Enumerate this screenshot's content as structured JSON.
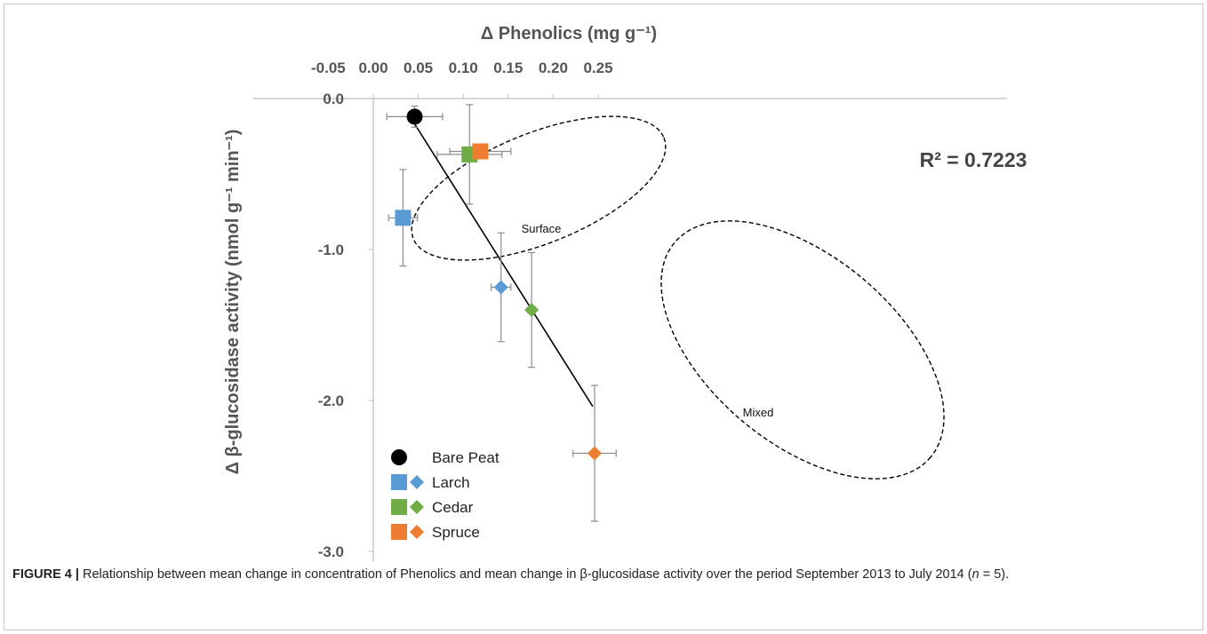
{
  "chart_data": {
    "type": "scatter",
    "xlabel": "Δ Phenolics (mg g⁻¹)",
    "ylabel": "Δ β-glucosidase activity (nmol g⁻¹ min⁻¹)",
    "x_ticks": [
      "-0.05",
      "0.00",
      "0.05",
      "0.10",
      "0.15",
      "0.20",
      "0.25"
    ],
    "y_ticks": [
      "0.0",
      "-1.0",
      "-2.0",
      "-3.0"
    ],
    "xlim": [
      -0.05,
      0.25
    ],
    "ylim": [
      -3.0,
      0.0
    ],
    "x_axis_position": "top",
    "grid": false,
    "legend_position": "bottom-left",
    "legend": [
      {
        "label": "Bare Peat",
        "markers": [
          "circle"
        ],
        "colors": [
          "#000000"
        ]
      },
      {
        "label": "Larch",
        "markers": [
          "square",
          "diamond"
        ],
        "colors": [
          "#5b9bd5",
          "#5b9bd5"
        ]
      },
      {
        "label": "Cedar",
        "markers": [
          "square",
          "diamond"
        ],
        "colors": [
          "#70ad47",
          "#70ad47"
        ]
      },
      {
        "label": "Spruce",
        "markers": [
          "square",
          "diamond"
        ],
        "colors": [
          "#ed7d31",
          "#ed7d31"
        ]
      }
    ],
    "series": [
      {
        "name": "Bare Peat",
        "marker": "circle",
        "color": "#000000",
        "points": [
          {
            "x": 0.046,
            "y": -0.12,
            "xerr": 0.031,
            "yerr": 0.07
          }
        ]
      },
      {
        "name": "Larch",
        "marker": "square",
        "color": "#5b9bd5",
        "points": [
          {
            "x": 0.033,
            "y": -0.79,
            "xerr": 0.016,
            "yerr": 0.32
          }
        ]
      },
      {
        "name": "Cedar",
        "marker": "square",
        "color": "#70ad47",
        "points": [
          {
            "x": 0.107,
            "y": -0.37,
            "xerr": 0.036,
            "yerr": 0.33
          }
        ]
      },
      {
        "name": "Spruce",
        "marker": "square",
        "color": "#ed7d31",
        "points": [
          {
            "x": 0.119,
            "y": -0.35,
            "xerr": 0.034,
            "yerr": 0.0
          }
        ]
      },
      {
        "name": "Larch",
        "marker": "diamond",
        "color": "#5b9bd5",
        "points": [
          {
            "x": 0.142,
            "y": -1.25,
            "xerr": 0.011,
            "yerr": 0.36
          }
        ]
      },
      {
        "name": "Cedar",
        "marker": "diamond",
        "color": "#70ad47",
        "points": [
          {
            "x": 0.176,
            "y": -1.4,
            "xerr": 0.004,
            "yerr": 0.38
          }
        ]
      },
      {
        "name": "Spruce",
        "marker": "diamond",
        "color": "#ed7d31",
        "points": [
          {
            "x": 0.246,
            "y": -2.35,
            "xerr": 0.024,
            "yerr": 0.45
          }
        ]
      }
    ],
    "trendline": {
      "x": [
        0.043,
        0.244
      ],
      "y": [
        -0.14,
        -2.04
      ]
    },
    "annotations": {
      "r_squared": "R² = 0.7223",
      "groups": [
        {
          "label": "Surface",
          "members": [
            "Larch",
            "Cedar",
            "Spruce"
          ],
          "marker": "square"
        },
        {
          "label": "Mixed",
          "members": [
            "Larch",
            "Cedar",
            "Spruce"
          ],
          "marker": "diamond"
        }
      ]
    }
  },
  "caption": {
    "figure_label": "FIGURE 4 |",
    "text_before_n": " Relationship between mean change in concentration of Phenolics and mean change in β-glucosidase activity over the period September 2013 to July 2014 (",
    "n_symbol": "n",
    "text_after_n": " = 5)."
  }
}
